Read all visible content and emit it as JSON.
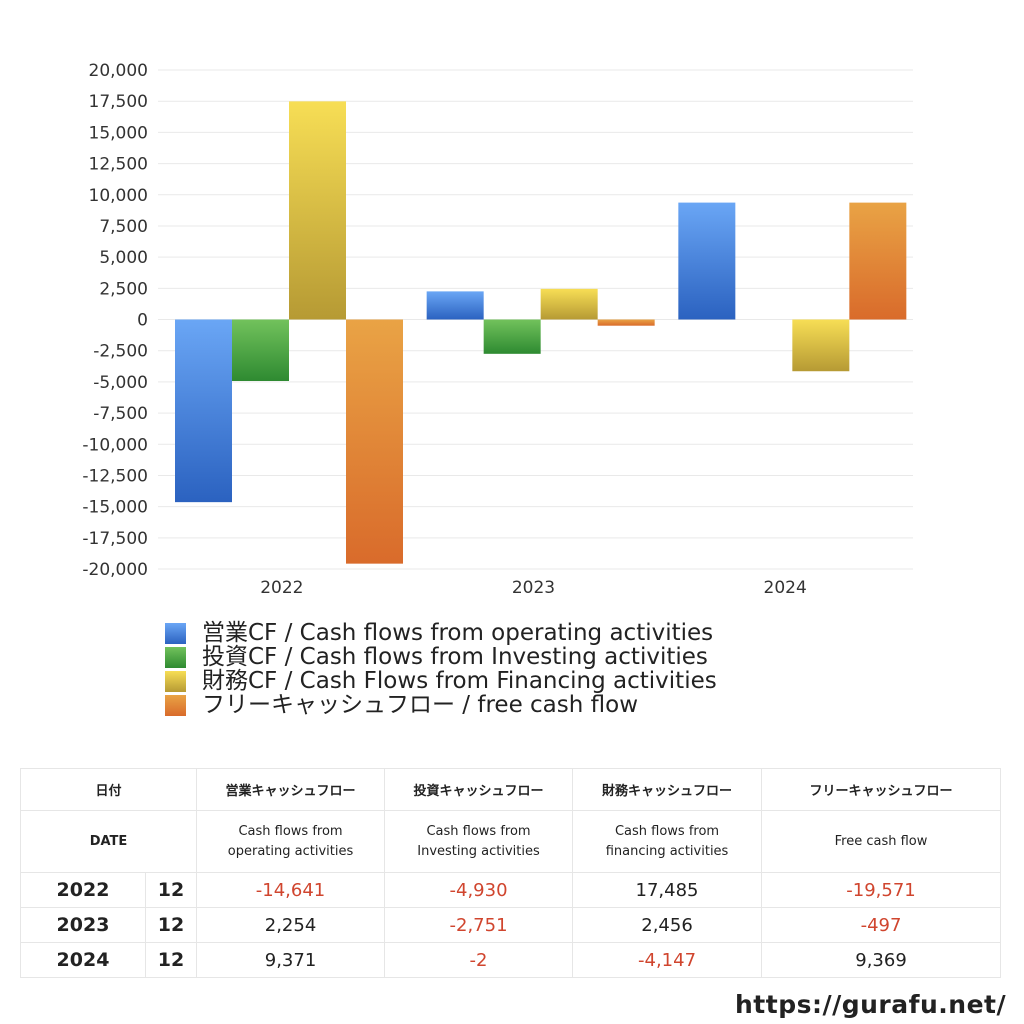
{
  "chart_data": {
    "type": "bar",
    "categories": [
      "2022",
      "2023",
      "2024"
    ],
    "series": [
      {
        "name": "営業CF / Cash flows from operating activities",
        "values": [
          -14641,
          2254,
          9371
        ],
        "color_top": "#6aa6f5",
        "color_bottom": "#2b62c0"
      },
      {
        "name": "投資CF / Cash flows from Investing activities",
        "values": [
          -4930,
          -2751,
          -2
        ],
        "color_top": "#72c25c",
        "color_bottom": "#2e8a31"
      },
      {
        "name": "財務CF / Cash Flows from Financing activities",
        "values": [
          17485,
          2456,
          -4147
        ],
        "color_top": "#f7de55",
        "color_bottom": "#b69a34"
      },
      {
        "name": "フリーキャッシュフロー / free cash flow",
        "values": [
          -19571,
          -497,
          9369
        ],
        "color_top": "#e9a345",
        "color_bottom": "#d96b2b"
      }
    ],
    "ylim": [
      -20000,
      20000
    ],
    "yticks": [
      "20,000",
      "17,500",
      "15,000",
      "12,500",
      "10,000",
      "7,500",
      "5,000",
      "2,500",
      "0",
      "-2,500",
      "-5,000",
      "-7,500",
      "-10,000",
      "-12,500",
      "-15,000",
      "-17,500",
      "-20,000"
    ],
    "grid": true,
    "legend_placement": "bottom"
  },
  "table": {
    "header1": [
      "日付",
      "営業キャッシュフロー",
      "投資キャッシュフロー",
      "財務キャッシュフロー",
      "フリーキャッシュフロー"
    ],
    "header2": [
      "DATE",
      "Cash flows from\noperating activities",
      "Cash flows from\nInvesting activities",
      "Cash flows from\nfinancing activities",
      "Free cash flow"
    ],
    "rows": [
      {
        "year": "2022",
        "month": "12",
        "values": [
          "-14,641",
          "-4,930",
          "17,485",
          "-19,571"
        ]
      },
      {
        "year": "2023",
        "month": "12",
        "values": [
          "2,254",
          "-2,751",
          "2,456",
          "-497"
        ]
      },
      {
        "year": "2024",
        "month": "12",
        "values": [
          "9,371",
          "-2",
          "-4,147",
          "9,369"
        ]
      }
    ]
  },
  "footer_url": "https://gurafu.net/"
}
